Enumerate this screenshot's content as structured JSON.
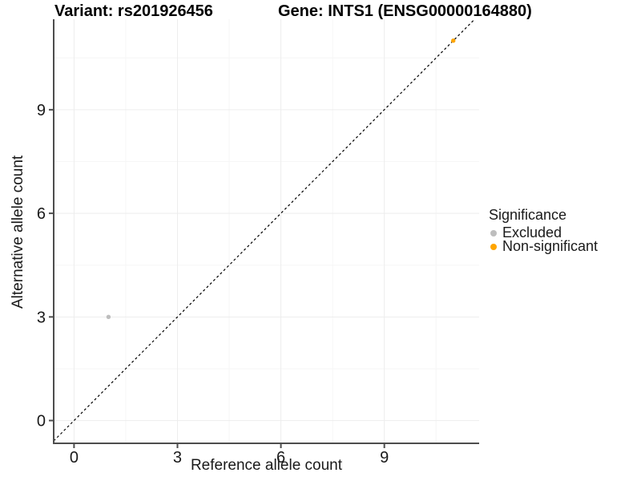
{
  "chart_data": {
    "type": "scatter",
    "title_left": "Variant: rs201926456",
    "title_right": "Gene: INTS1 (ENSG00000164880)",
    "xlabel": "Reference allele count",
    "ylabel": "Alternative allele count",
    "xticks": [
      0,
      3,
      6,
      9
    ],
    "yticks": [
      0,
      3,
      6,
      9
    ],
    "minor_xticks": [
      1.5,
      4.5,
      7.5,
      10.5
    ],
    "minor_yticks": [
      1.5,
      4.5,
      7.5,
      10.5
    ],
    "xlim": [
      -0.59,
      11.75
    ],
    "ylim": [
      -0.66,
      11.62
    ],
    "grid": "major and minor, light gray, white panel background",
    "identity_line": {
      "equation": "y = x",
      "style": "dashed",
      "color": "#000000"
    },
    "legend": {
      "title": "Significance",
      "position": "right"
    },
    "series": [
      {
        "name": "Excluded",
        "color": "#BEBEBE",
        "points": [
          [
            1,
            3
          ]
        ]
      },
      {
        "name": "Non-significant",
        "color": "#FFA500",
        "points": [
          [
            11,
            11
          ]
        ]
      }
    ],
    "colors": {
      "grid_major": "#ededed",
      "grid_minor": "#f6f6f6",
      "axis_line": "#4d4d4d",
      "tick_text": "#1a1a1a"
    }
  }
}
